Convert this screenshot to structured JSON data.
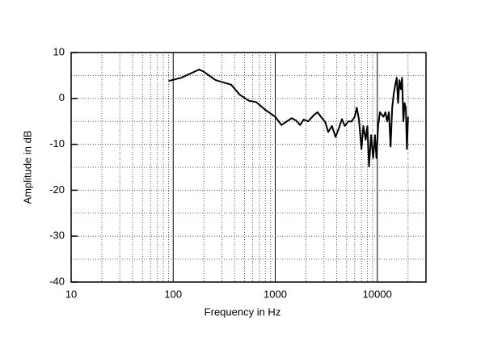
{
  "chart_data": {
    "type": "line",
    "xlabel": "Frequency in Hz",
    "ylabel": "Amplitude in dB",
    "xscale": "log",
    "xlim": [
      10,
      30000
    ],
    "ylim": [
      -40,
      10
    ],
    "xticks": [
      10,
      100,
      1000,
      10000
    ],
    "yticks": [
      10,
      0,
      -10,
      -20,
      -30,
      -40
    ],
    "xminorticks": [
      20,
      30,
      40,
      50,
      60,
      70,
      80,
      90,
      200,
      300,
      400,
      500,
      600,
      700,
      800,
      900,
      2000,
      3000,
      4000,
      5000,
      6000,
      7000,
      8000,
      9000,
      20000
    ],
    "yminorticks": [
      5,
      -5,
      -15,
      -25,
      -35
    ],
    "grid": true,
    "series": [
      {
        "color": "#000000",
        "x": [
          90,
          120,
          180,
          200,
          260,
          300,
          370,
          450,
          550,
          650,
          800,
          1000,
          1150,
          1300,
          1450,
          1600,
          1750,
          1900,
          2100,
          2400,
          2600,
          2800,
          3100,
          3300,
          3600,
          3900,
          4200,
          4500,
          4800,
          5200,
          5600,
          6000,
          6300,
          6600,
          7000,
          7300,
          7700,
          8000,
          8300,
          8700,
          9100,
          9500,
          9800,
          10200,
          10600,
          11000,
          11500,
          12000,
          12500,
          13000,
          13500,
          14000,
          14500,
          15000,
          15500,
          16000,
          16500,
          17000,
          17500,
          18000,
          18500,
          19000,
          19500,
          20000
        ],
        "values": [
          3.8,
          4.5,
          6.3,
          5.8,
          4,
          3.6,
          3,
          0.8,
          -0.5,
          -0.8,
          -2.5,
          -4,
          -5.8,
          -5,
          -4.3,
          -4.8,
          -5.8,
          -4.6,
          -5,
          -3.6,
          -3,
          -4,
          -5.2,
          -7.3,
          -6,
          -8.4,
          -6.5,
          -4.5,
          -6,
          -5,
          -5,
          -4,
          -2,
          -4.5,
          -11,
          -6,
          -9,
          -6,
          -14.8,
          -8,
          -13,
          -8,
          -13,
          -6,
          -3,
          -3.5,
          -4,
          -3,
          -5,
          -3,
          -10.5,
          -2,
          1,
          3,
          4.5,
          -1,
          4,
          2,
          4.5,
          -5,
          -1,
          -2,
          -11,
          -4
        ]
      }
    ]
  }
}
